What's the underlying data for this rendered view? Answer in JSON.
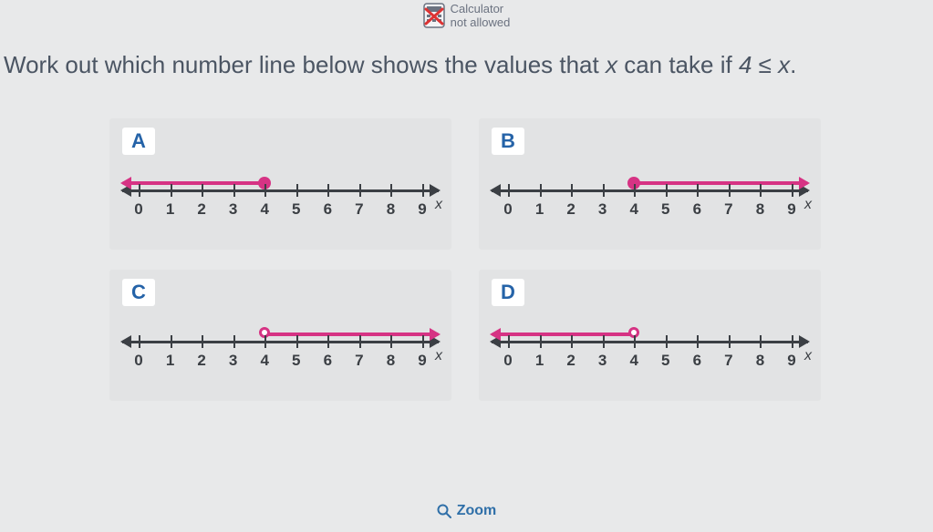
{
  "calc_notice": {
    "line1": "Calculator",
    "line2": "not allowed"
  },
  "question": {
    "prefix": "Work out which number line below shows the values that ",
    "var": "x",
    "middle": " can take if ",
    "ineq": "4 ≤ x",
    "suffix": "."
  },
  "axis": {
    "ticks": [
      0,
      1,
      2,
      3,
      4,
      5,
      6,
      7,
      8,
      9
    ],
    "axis_color": "#3b3f44",
    "var_label": "x"
  },
  "ray_color": "#d63384",
  "choices": [
    {
      "id": "A",
      "endpoint_value": 4,
      "endpoint_style": "closed",
      "direction": "left"
    },
    {
      "id": "B",
      "endpoint_value": 4,
      "endpoint_style": "closed",
      "direction": "right"
    },
    {
      "id": "C",
      "endpoint_value": 4,
      "endpoint_style": "open",
      "direction": "right"
    },
    {
      "id": "D",
      "endpoint_value": 4,
      "endpoint_style": "open",
      "direction": "left"
    }
  ],
  "zoom_label": "Zoom"
}
